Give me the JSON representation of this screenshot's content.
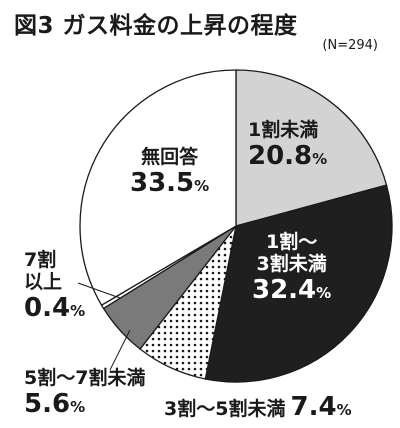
{
  "title": "図3 ガス料金の上昇の程度",
  "note": "(N=294)",
  "chart_data": {
    "type": "pie",
    "title": "図3 ガス料金の上昇の程度",
    "n": "N=294",
    "unit": "%",
    "slices": [
      {
        "label": "1割未満",
        "value": 20.8,
        "color": "#d3d3d3"
      },
      {
        "label": "1割〜3割未満",
        "value": 32.4,
        "color": "#1f1f1f"
      },
      {
        "label": "3割〜5割未満",
        "value": 7.4,
        "color": "#ffffff",
        "pattern": "dots"
      },
      {
        "label": "5割〜7割未満",
        "value": 5.6,
        "color": "#7a7a7a"
      },
      {
        "label": "7割以上",
        "value": 0.4,
        "color": "#ffffff"
      },
      {
        "label": "無回答",
        "value": 33.5,
        "color": "#ffffff"
      }
    ],
    "display": {
      "s0_line1": "1割未満",
      "s0_value": "20.8",
      "s1_line1": "1割〜",
      "s1_line2": "3割未満",
      "s1_value": "32.4",
      "s2_line1": "3割〜5割未満",
      "s2_value": "7.4",
      "s3_line1": "5割〜7割未満",
      "s3_value": "5.6",
      "s4_line1": "7割",
      "s4_line2": "以上",
      "s4_value": "0.4",
      "s5_line1": "無回答",
      "s5_value": "33.5",
      "pct": "%"
    }
  }
}
